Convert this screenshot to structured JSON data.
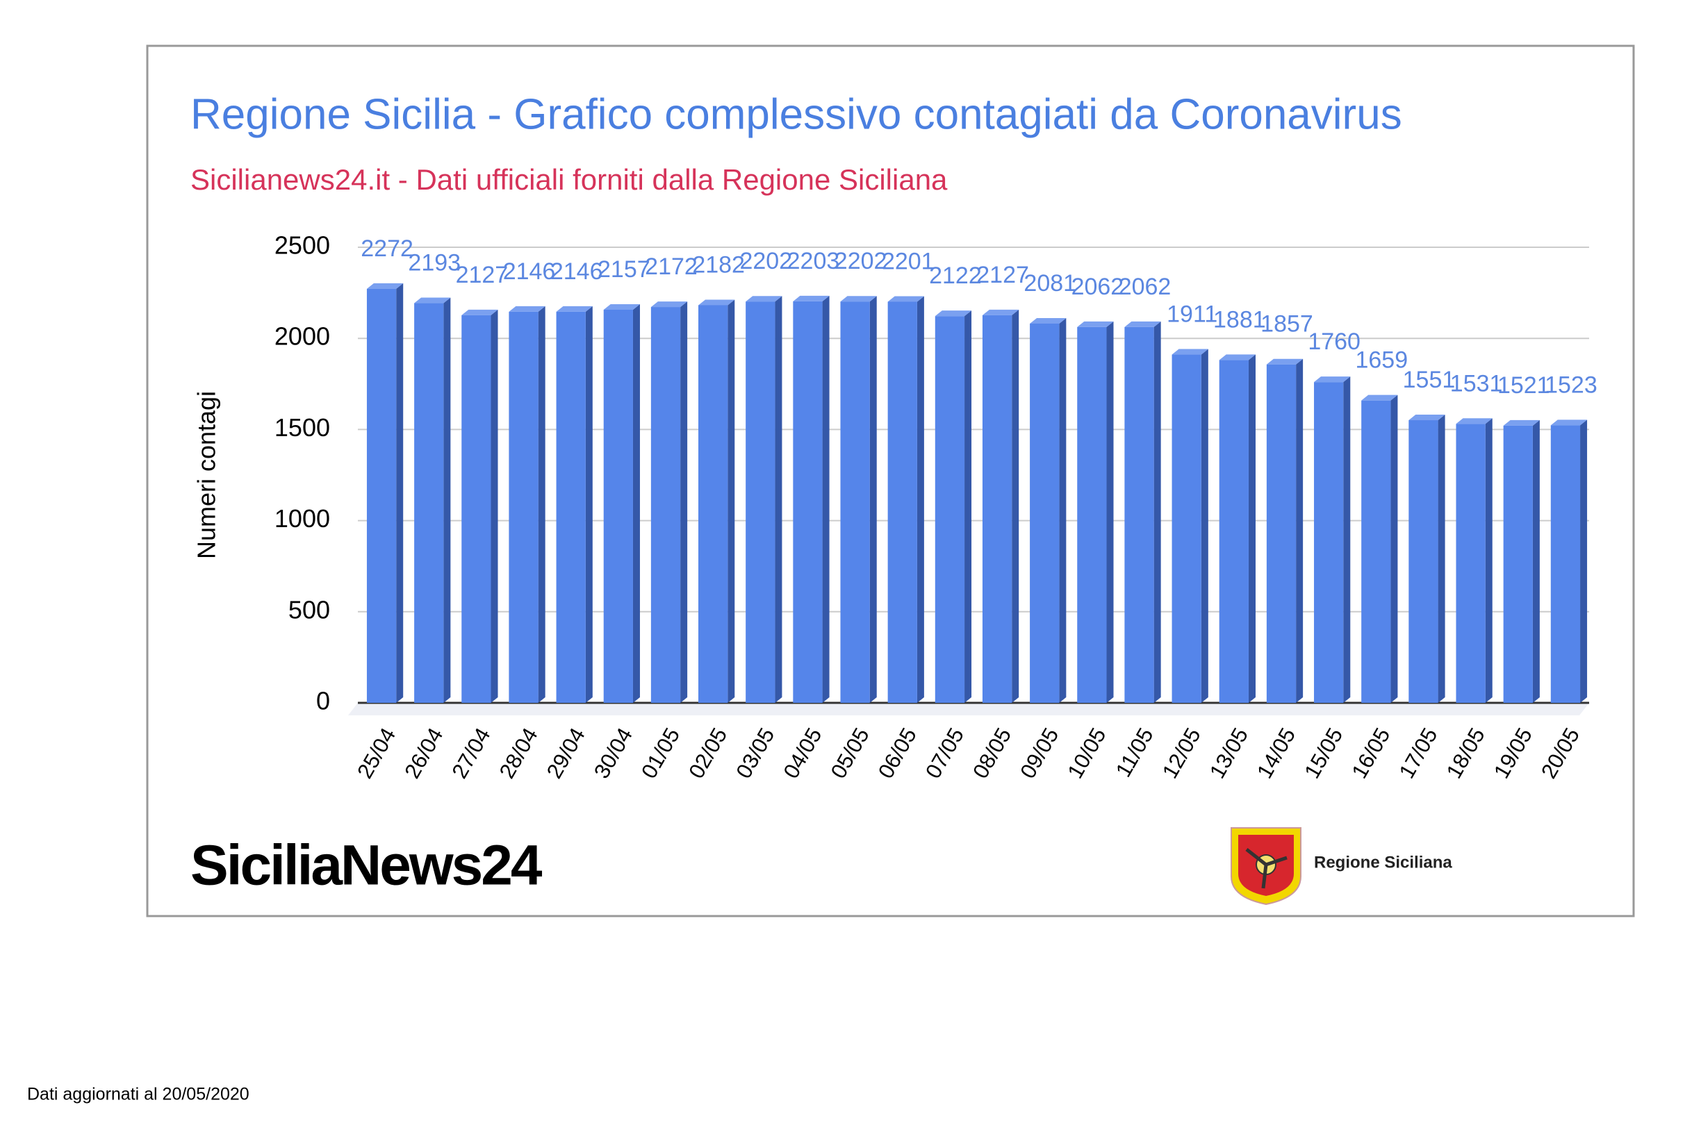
{
  "chart_data": {
    "type": "bar",
    "title": "Regione Sicilia - Grafico complessivo contagiati da Coronavirus",
    "subtitle": "Sicilianews24.it - Dati ufficiali forniti dalla Regione Siciliana",
    "y_label": "Numeri contagi",
    "categories": [
      "25/04",
      "26/04",
      "27/04",
      "28/04",
      "29/04",
      "30/04",
      "01/05",
      "02/05",
      "03/05",
      "04/05",
      "05/05",
      "06/05",
      "07/05",
      "08/05",
      "09/05",
      "10/05",
      "11/05",
      "12/05",
      "13/05",
      "14/05",
      "15/05",
      "16/05",
      "17/05",
      "18/05",
      "19/05",
      "20/05"
    ],
    "values": [
      2272,
      2193,
      2127,
      2146,
      2146,
      2157,
      2172,
      2182,
      2202,
      2203,
      2202,
      2201,
      2122,
      2127,
      2081,
      2062,
      2062,
      1911,
      1881,
      1857,
      1760,
      1659,
      1551,
      1531,
      1521,
      1523
    ],
    "color": "#5585ea",
    "ylim": [
      0,
      2500
    ],
    "yticks": [
      0,
      500,
      1000,
      1500,
      2000,
      2500
    ],
    "grid": true
  },
  "branding": {
    "logo_left": "SiciliaNews24",
    "logo_right": "Regione Siciliana"
  },
  "footer": "Dati aggiornati al 20/05/2020"
}
